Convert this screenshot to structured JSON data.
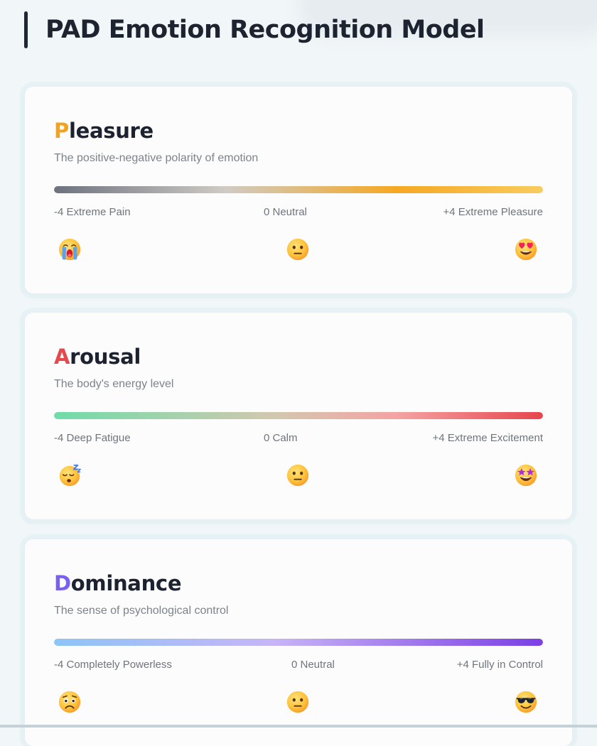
{
  "page": {
    "title": "PAD Emotion Recognition Model"
  },
  "colors": {
    "pleasure_accent": "#f5a21b",
    "arousal_accent": "#e5484d",
    "dominance_accent": "#7b5ff0"
  },
  "dimensions": [
    {
      "initial": "P",
      "rest": "leasure",
      "description": "The positive-negative polarity of emotion",
      "low_label": "-4 Extreme Pain",
      "mid_label": "0 Neutral",
      "high_label": "+4 Extreme Pleasure",
      "low_icon": "loudly-crying-face-icon",
      "mid_icon": "neutral-face-icon",
      "high_icon": "heart-eyes-face-icon"
    },
    {
      "initial": "A",
      "rest": "rousal",
      "description": "The body's energy level",
      "low_label": "-4 Deep Fatigue",
      "mid_label": "0 Calm",
      "high_label": "+4 Extreme Excitement",
      "low_icon": "sleeping-face-icon",
      "mid_icon": "neutral-face-icon",
      "high_icon": "star-struck-face-icon"
    },
    {
      "initial": "D",
      "rest": "ominance",
      "description": "The sense of psychological control",
      "low_label": "-4 Completely Powerless",
      "mid_label": "0 Neutral",
      "high_label": "+4 Fully in Control",
      "low_icon": "worried-face-icon",
      "mid_icon": "neutral-face-icon",
      "high_icon": "sunglasses-face-icon"
    }
  ]
}
